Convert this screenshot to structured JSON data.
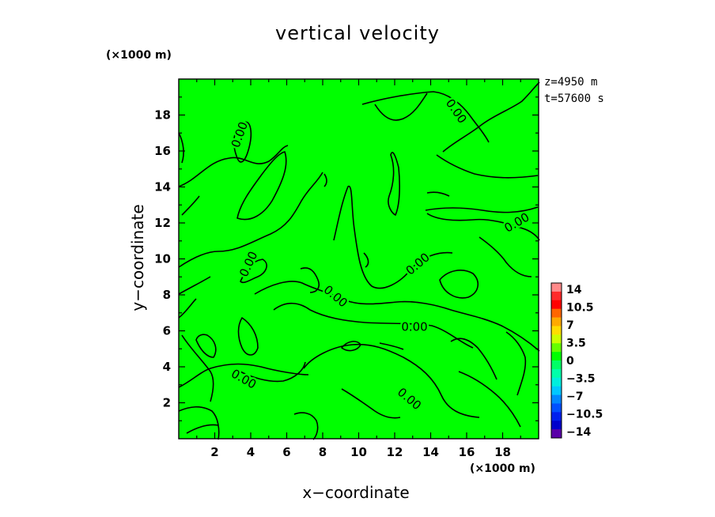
{
  "chart_data": {
    "type": "contour",
    "title": "vertical velocity",
    "xlabel": "x−coordinate",
    "ylabel": "y−coordinate",
    "x_unit": "(×1000 m)",
    "y_unit": "(×1000 m)",
    "x_ticks": [
      "2",
      "4",
      "6",
      "8",
      "10",
      "12",
      "14",
      "16",
      "18"
    ],
    "y_ticks": [
      "2",
      "4",
      "6",
      "8",
      "10",
      "12",
      "14",
      "16",
      "18"
    ],
    "xlim": [
      0,
      20
    ],
    "ylim": [
      0,
      20
    ],
    "annotations": [
      "z=4950  m",
      "t=57600  s"
    ],
    "field_color": "#00ff00",
    "contour_levels": [
      0.0
    ],
    "contour_labels": [
      {
        "text": "0.00",
        "x": 3.4,
        "y": 16.9,
        "rot": -70
      },
      {
        "text": "0.00",
        "x": 15.4,
        "y": 18.2,
        "rot": 55
      },
      {
        "text": "0.00",
        "x": 18.8,
        "y": 12.0,
        "rot": -30
      },
      {
        "text": "0.00",
        "x": 3.9,
        "y": 9.7,
        "rot": -65
      },
      {
        "text": "0.00",
        "x": 13.3,
        "y": 9.7,
        "rot": -40
      },
      {
        "text": "0.00",
        "x": 8.7,
        "y": 7.9,
        "rot": 40
      },
      {
        "text": "0.00",
        "x": 13.1,
        "y": 6.2,
        "rot": 0
      },
      {
        "text": "0.00",
        "x": 3.6,
        "y": 3.3,
        "rot": 30
      },
      {
        "text": "0.00",
        "x": 12.8,
        "y": 2.2,
        "rot": 40
      }
    ],
    "colorbar": {
      "labels": [
        "14",
        "10.5",
        "7",
        "3.5",
        "0",
        "−3.5",
        "−7",
        "−10.5",
        "−14"
      ],
      "colors": [
        "#ff8a8a",
        "#ff2a2a",
        "#ff0000",
        "#ff6600",
        "#ffaa00",
        "#ffdd00",
        "#ccff00",
        "#66ff00",
        "#00ff00",
        "#00ff66",
        "#00ffaa",
        "#00eedd",
        "#00c8ff",
        "#0088ff",
        "#0050ff",
        "#0020ee",
        "#0000cc",
        "#5a00a8"
      ]
    }
  }
}
